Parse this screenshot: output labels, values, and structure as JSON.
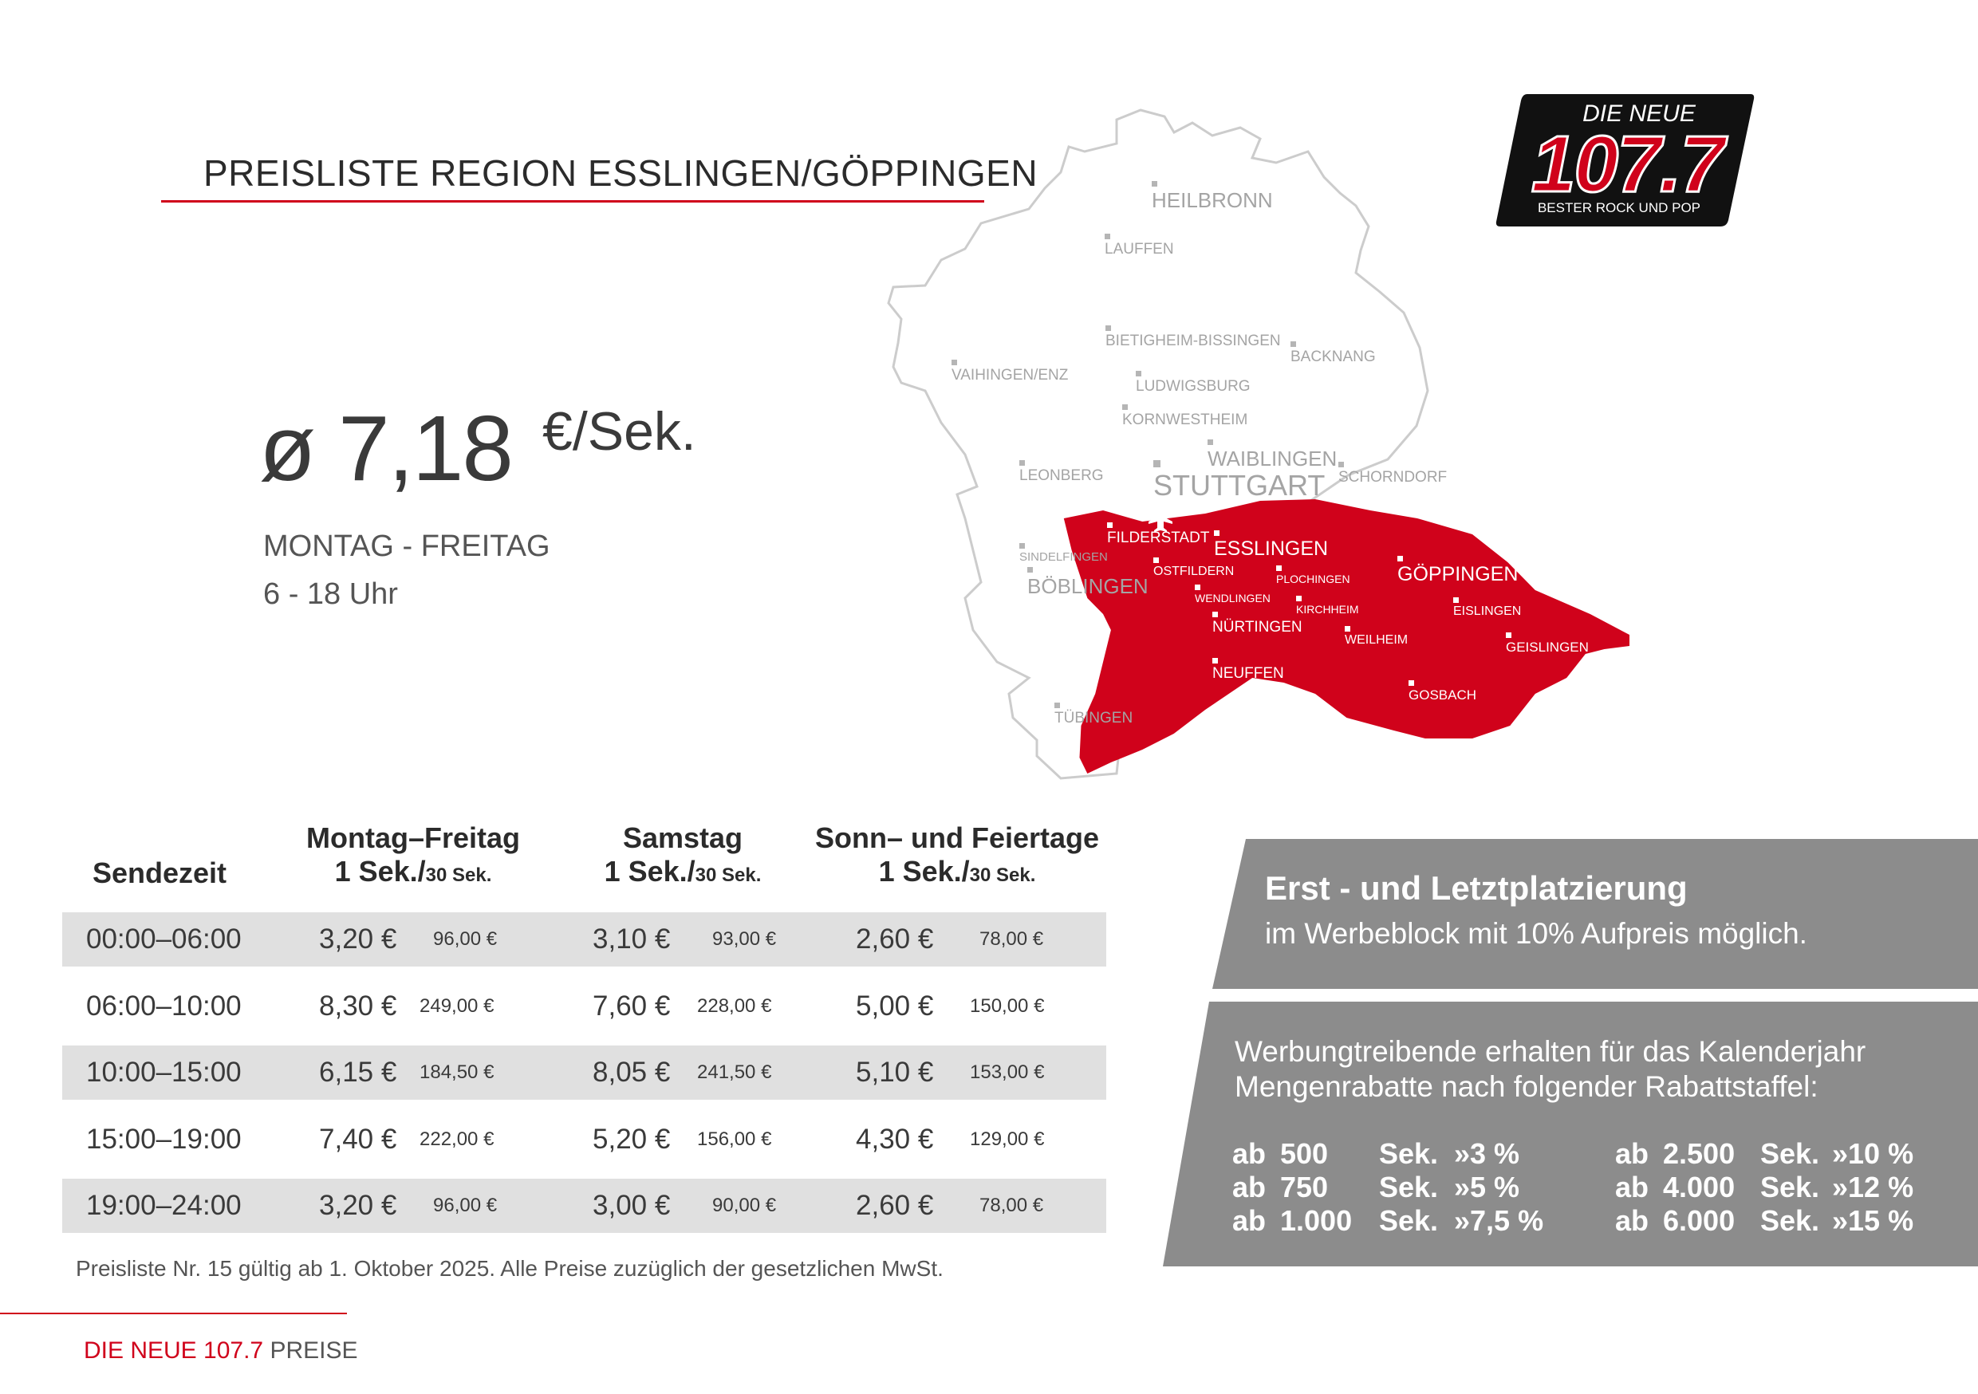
{
  "title": "PREISLISTE REGION ESSLINGEN/GÖPPINGEN",
  "colors": {
    "accent": "#d0021b",
    "panel": "#8c8c8c",
    "row_shade": "#e0e0e0",
    "map_region": "#d0021b"
  },
  "logo": {
    "line1": "DIE NEUE",
    "number": "107.7",
    "slogan": "BESTER ROCK UND POP"
  },
  "price": {
    "avg": "ø 7,18",
    "unit": "€/Sek.",
    "days": "MONTAG - FREITAG",
    "hours": "6 - 18 Uhr"
  },
  "map": {
    "icon": "airplane-icon",
    "cities_outside": [
      "HEILBRONN",
      "LAUFFEN",
      "BIETIGHEIM-BISSINGEN",
      "BACKNANG",
      "VAIHINGEN/ENZ",
      "LUDWIGSBURG",
      "KORNWESTHEIM",
      "WAIBLINGEN",
      "SCHORNDORF",
      "LEONBERG",
      "STUTTGART",
      "SINDELFINGEN",
      "BÖBLINGEN",
      "TÜBINGEN"
    ],
    "cities_region": [
      "FILDERSTADT",
      "ESSLINGEN",
      "OSTFILDERN",
      "PLOCHINGEN",
      "GÖPPINGEN",
      "WENDLINGEN",
      "KIRCHHEIM",
      "EISLINGEN",
      "NÜRTINGEN",
      "WEILHEIM",
      "GEISLINGEN",
      "NEUFFEN",
      "GOSBACH"
    ]
  },
  "table": {
    "headers": {
      "sendezeit": "Sendezeit",
      "col1": {
        "title": "Montag–Freitag",
        "unit1": "1 Sek./",
        "unit2": "30 Sek."
      },
      "col2": {
        "title": "Samstag",
        "unit1": "1 Sek./",
        "unit2": "30 Sek."
      },
      "col3": {
        "title": "Sonn– und Feiertage",
        "unit1": "1 Sek./",
        "unit2": "30 Sek."
      }
    },
    "rows": [
      {
        "time": "00:00–06:00",
        "mf": "3,20 €",
        "mf30": "96,00 €",
        "sa": "3,10 €",
        "sa30": "93,00 €",
        "so": "2,60 €",
        "so30": "78,00 €"
      },
      {
        "time": "06:00–10:00",
        "mf": "8,30 €",
        "mf30": "249,00 €",
        "sa": "7,60 €",
        "sa30": "228,00 €",
        "so": "5,00 €",
        "so30": "150,00 €"
      },
      {
        "time": "10:00–15:00",
        "mf": "6,15 €",
        "mf30": "184,50 €",
        "sa": "8,05 €",
        "sa30": "241,50 €",
        "so": "5,10 €",
        "so30": "153,00 €"
      },
      {
        "time": "15:00–19:00",
        "mf": "7,40 €",
        "mf30": "222,00 €",
        "sa": "5,20 €",
        "sa30": "156,00 €",
        "so": "4,30 €",
        "so30": "129,00 €"
      },
      {
        "time": "19:00–24:00",
        "mf": "3,20 €",
        "mf30": "96,00 €",
        "sa": "3,00 €",
        "sa30": "90,00 €",
        "so": "2,60 €",
        "so30": "78,00 €"
      }
    ],
    "footnote": "Preisliste Nr. 15 gültig ab 1. Oktober 2025. Alle Preise zuzüglich der gesetzlichen MwSt."
  },
  "panel_placement": {
    "heading": "Erst - und Letztplatzierung",
    "text": "im Werbeblock mit 10% Aufpreis möglich."
  },
  "panel_discount": {
    "line1": "Werbungtreibende erhalten für das Kalenderjahr",
    "line2": "Mengenrabatte nach folgender Rabattstaffel:",
    "left": [
      {
        "ab": "ab",
        "amount": "500",
        "unit": "Sek.",
        "pct": "»3 %"
      },
      {
        "ab": "ab",
        "amount": "750",
        "unit": "Sek.",
        "pct": "»5 %"
      },
      {
        "ab": "ab",
        "amount": "1.000",
        "unit": "Sek.",
        "pct": "»7,5 %"
      }
    ],
    "right": [
      {
        "ab": "ab",
        "amount": "2.500",
        "unit": "Sek.",
        "pct": "»10 %"
      },
      {
        "ab": "ab",
        "amount": "4.000",
        "unit": "Sek.",
        "pct": "»12 %"
      },
      {
        "ab": "ab",
        "amount": "6.000",
        "unit": "Sek.",
        "pct": "»15 %"
      }
    ]
  },
  "footer": {
    "brand": "DIE NEUE 107.7",
    "label": "PREISE"
  }
}
